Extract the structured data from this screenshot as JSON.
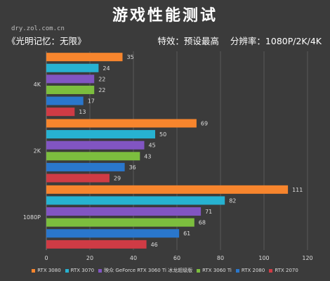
{
  "header": {
    "title": "游戏性能测试",
    "watermark": "dry.zol.com.cn",
    "game": "《光明记忆：无限》",
    "effects": "特效：预设最高",
    "resolution": "分辨率：1080P/2K/4K"
  },
  "chart_data": {
    "type": "bar",
    "orientation": "horizontal",
    "categories": [
      "4K",
      "2K",
      "1080P"
    ],
    "series": [
      {
        "name": "RTX 3080",
        "color": "#f7852d",
        "values": [
          35,
          69,
          111
        ]
      },
      {
        "name": "RTX 3070",
        "color": "#27b2d1",
        "values": [
          24,
          50,
          82
        ]
      },
      {
        "name": "映众 GeForce RTX 3060 Ti 冰龙超级版",
        "color": "#8155c2",
        "values": [
          22,
          45,
          71
        ]
      },
      {
        "name": "RTX 3060 Ti",
        "color": "#7cbe3e",
        "values": [
          22,
          43,
          68
        ]
      },
      {
        "name": "RTX 2080",
        "color": "#2a77cc",
        "values": [
          17,
          36,
          61
        ]
      },
      {
        "name": "RTX 2070",
        "color": "#cf3b45",
        "values": [
          13,
          29,
          46
        ]
      }
    ],
    "xlim": [
      0,
      120
    ],
    "xticks": [
      0,
      20,
      40,
      60,
      80,
      100,
      120
    ],
    "grid": true,
    "data_labels": true,
    "legend_position": "bottom"
  }
}
